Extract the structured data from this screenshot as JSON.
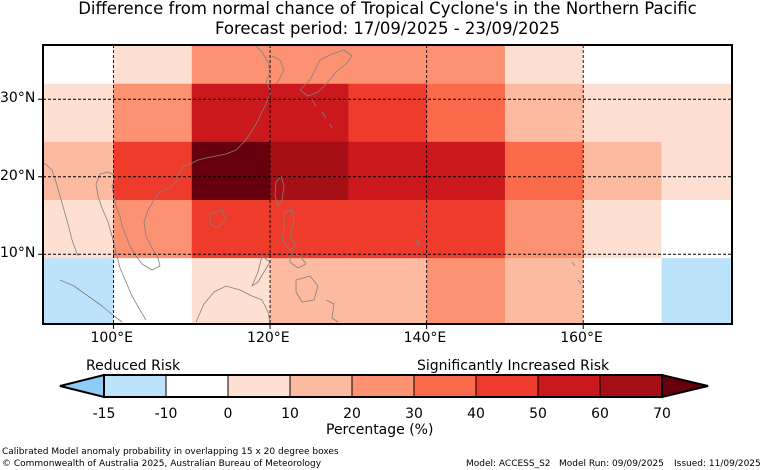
{
  "title": {
    "line1": "Difference from normal chance of Tropical Cyclone's in the Northern Pacific",
    "line2": "Forecast period: 17/09/2025 - 23/09/2025"
  },
  "map": {
    "lon_range": [
      91,
      179
    ],
    "lat_range": [
      1,
      37
    ],
    "lon_ticks": [
      {
        "value": 100,
        "label": "100°E"
      },
      {
        "value": 120,
        "label": "120°E"
      },
      {
        "value": 140,
        "label": "140°E"
      },
      {
        "value": 160,
        "label": "160°E"
      }
    ],
    "lat_ticks": [
      {
        "value": 10,
        "label": "10°N"
      },
      {
        "value": 20,
        "label": "20°N"
      },
      {
        "value": 30,
        "label": "30°N"
      }
    ],
    "lon_edges": [
      91,
      100,
      110,
      120,
      130,
      140,
      150,
      160,
      170,
      179
    ],
    "lat_rows": [
      {
        "lat_min": 32,
        "lat_max": 37,
        "values": [
          -10,
          0,
          20,
          20,
          20,
          20,
          0,
          -10,
          -10
        ]
      },
      {
        "lat_min": 24.5,
        "lat_max": 32,
        "values": [
          0,
          20,
          50,
          50,
          40,
          30,
          10,
          0,
          0
        ]
      },
      {
        "lat_min": 17,
        "lat_max": 24.5,
        "values": [
          10,
          40,
          70,
          60,
          55,
          50,
          30,
          10,
          0
        ]
      },
      {
        "lat_min": 9.5,
        "lat_max": 17,
        "values": [
          0,
          20,
          40,
          40,
          40,
          40,
          20,
          0,
          -10
        ]
      },
      {
        "lat_min": 1,
        "lat_max": 9.5,
        "values": [
          -15,
          -10,
          0,
          10,
          10,
          20,
          10,
          -10,
          -15
        ]
      }
    ],
    "colors": {
      "land_outline": "#808080",
      "frame": "#000000",
      "gridline": "#000000"
    }
  },
  "legend": {
    "reduced_label": "Reduced Risk",
    "increased_label": "Significantly Increased Risk",
    "axis_label": "Percentage (%)",
    "bins": [
      {
        "from": -15,
        "to": -10,
        "color": "#bde3fb"
      },
      {
        "from": -10,
        "to": 0,
        "color": "#ffffff"
      },
      {
        "from": 0,
        "to": 10,
        "color": "#fee0d2"
      },
      {
        "from": 10,
        "to": 20,
        "color": "#fcbba1"
      },
      {
        "from": 20,
        "to": 30,
        "color": "#fc9272"
      },
      {
        "from": 30,
        "to": 40,
        "color": "#fb6a4a"
      },
      {
        "from": 40,
        "to": 50,
        "color": "#ef3b2c"
      },
      {
        "from": 50,
        "to": 60,
        "color": "#cb181d"
      },
      {
        "from": 60,
        "to": 70,
        "color": "#a50f15"
      }
    ],
    "under_color": "#8ecbf6",
    "over_color": "#67000d",
    "ticks": [
      "-15",
      "-10",
      "0",
      "10",
      "20",
      "30",
      "40",
      "50",
      "60",
      "70"
    ]
  },
  "footer": {
    "note": "Calibrated Model anomaly probability in overlapping 15 x 20 degree boxes",
    "copyright": "© Commonwealth of Australia 2025, Australian Bureau of Meteorology",
    "model": "Model: ACCESS_S2",
    "model_run": "Model Run: 09/09/2025",
    "issued": "Issued: 11/09/2025"
  }
}
